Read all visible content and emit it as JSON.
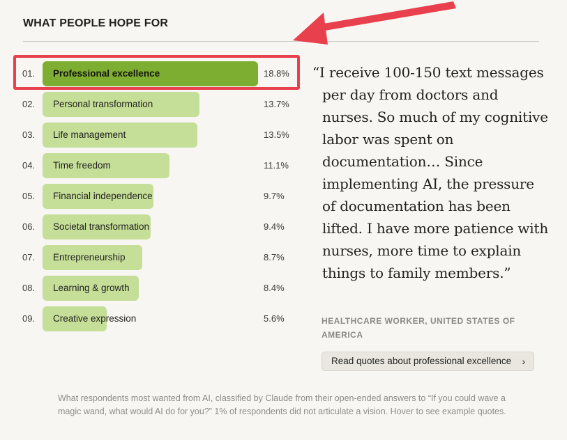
{
  "header": {
    "title": "WHAT PEOPLE HOPE FOR"
  },
  "chart_data": {
    "type": "bar",
    "orientation": "horizontal",
    "title": "WHAT PEOPLE HOPE FOR",
    "unit": "%",
    "xlim": [
      0,
      18.8
    ],
    "ranks": [
      "01.",
      "02.",
      "03.",
      "04.",
      "05.",
      "06.",
      "07.",
      "08.",
      "09."
    ],
    "categories": [
      "Professional excellence",
      "Personal transformation",
      "Life management",
      "Time freedom",
      "Financial independence",
      "Societal transformation",
      "Entrepreneurship",
      "Learning & growth",
      "Creative expression"
    ],
    "values": [
      18.8,
      13.7,
      13.5,
      11.1,
      9.7,
      9.4,
      8.7,
      8.4,
      5.6
    ],
    "value_labels": [
      "18.8%",
      "13.7%",
      "13.5%",
      "11.1%",
      "9.7%",
      "9.4%",
      "8.7%",
      "8.4%",
      "5.6%"
    ],
    "selected_index": 0,
    "colors": {
      "selected": "#7eae31",
      "default": "#c5df98"
    }
  },
  "annotation": {
    "highlight_color": "#e8404c",
    "arrow_color": "#e8404c"
  },
  "quote": {
    "text": "“I receive 100-150 text messages per day from doctors and nurses. So much of my cognitive labor was spent on documentation… Since implementing AI, the pressure of documentation has been lifted. I have more patience with nurses, more time to explain things to family members.”",
    "attribution": "HEALTHCARE WORKER, UNITED STATES OF AMERICA"
  },
  "read_button": {
    "label": "Read quotes about professional excellence",
    "icon": "chevron-right-icon"
  },
  "caption": "What respondents most wanted from AI, classified by Claude from their open-ended answers to “If you could wave a magic wand, what would AI do for you?” 1% of respondents did not articulate a vision. Hover to see example quotes."
}
